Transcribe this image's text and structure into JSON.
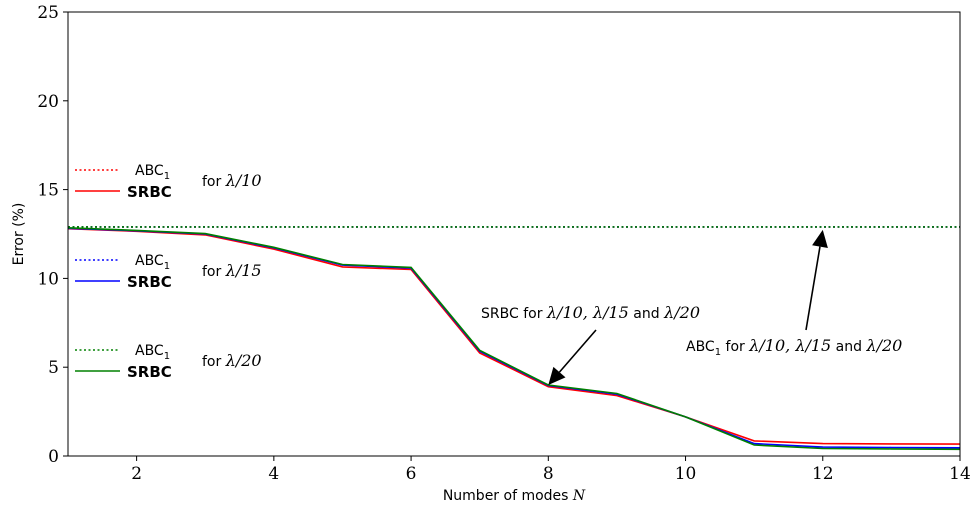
{
  "chart_data": {
    "type": "line",
    "xlabel": "Number of modes N",
    "ylabel": "Error (%)",
    "xlim": [
      1,
      14
    ],
    "ylim": [
      0,
      25
    ],
    "xticks": [
      2,
      4,
      6,
      8,
      10,
      12,
      14
    ],
    "yticks": [
      0,
      5,
      10,
      15,
      20,
      25
    ],
    "grid": false,
    "x": [
      1,
      2,
      3,
      4,
      5,
      6,
      7,
      8,
      9,
      10,
      11,
      12,
      13,
      14
    ],
    "series": [
      {
        "name": "ABC₁ for λ/10",
        "color": "#ff0000",
        "style": "dotted",
        "values": [
          12.9,
          12.9,
          12.9,
          12.9,
          12.9,
          12.9,
          12.9,
          12.9,
          12.9,
          12.9,
          12.9,
          12.9,
          12.9,
          12.9
        ]
      },
      {
        "name": "SRBC for λ/10",
        "color": "#ff0000",
        "style": "solid",
        "values": [
          12.8,
          12.65,
          12.45,
          11.65,
          10.65,
          10.5,
          5.8,
          3.9,
          3.4,
          2.2,
          0.85,
          0.7,
          0.68,
          0.67
        ]
      },
      {
        "name": "ABC₁ for λ/15",
        "color": "#0000ff",
        "style": "dotted",
        "values": [
          12.9,
          12.9,
          12.9,
          12.9,
          12.9,
          12.9,
          12.9,
          12.9,
          12.9,
          12.9,
          12.9,
          12.9,
          12.9,
          12.9
        ]
      },
      {
        "name": "SRBC for λ/15",
        "color": "#0000ff",
        "style": "solid",
        "values": [
          12.82,
          12.68,
          12.5,
          11.72,
          10.75,
          10.58,
          5.9,
          3.97,
          3.48,
          2.2,
          0.7,
          0.5,
          0.48,
          0.46
        ]
      },
      {
        "name": "ABC₁ for λ/20",
        "color": "#008000",
        "style": "dotted",
        "values": [
          12.9,
          12.9,
          12.9,
          12.9,
          12.9,
          12.9,
          12.9,
          12.9,
          12.9,
          12.9,
          12.9,
          12.9,
          12.9,
          12.9
        ]
      },
      {
        "name": "SRBC for λ/20",
        "color": "#008000",
        "style": "solid",
        "values": [
          12.85,
          12.7,
          12.52,
          11.75,
          10.78,
          10.62,
          5.95,
          4.0,
          3.52,
          2.2,
          0.62,
          0.42,
          0.4,
          0.38
        ]
      }
    ],
    "legend": {
      "position": "left",
      "groups": [
        {
          "abc_label": "ABC",
          "abc_sub": "1",
          "srbc_label": "SRBC",
          "for_text": "for ",
          "lambda": "λ/10",
          "color": "#ff0000"
        },
        {
          "abc_label": "ABC",
          "abc_sub": "1",
          "srbc_label": "SRBC",
          "for_text": "for ",
          "lambda": "λ/15",
          "color": "#0000ff"
        },
        {
          "abc_label": "ABC",
          "abc_sub": "1",
          "srbc_label": "SRBC",
          "for_text": "for ",
          "lambda": "λ/20",
          "color": "#008000"
        }
      ]
    },
    "annotations": [
      {
        "prefix": "SRBC for ",
        "math": "λ/10, λ/15",
        "mid": " and ",
        "math2": "λ/20",
        "target": [
          8,
          4.0
        ]
      },
      {
        "prefix": "ABC",
        "sub": "1",
        "prefix2": " for ",
        "math": "λ/10, λ/15",
        "mid": " and ",
        "math2": "λ/20",
        "target": [
          12,
          12.9
        ]
      }
    ]
  }
}
